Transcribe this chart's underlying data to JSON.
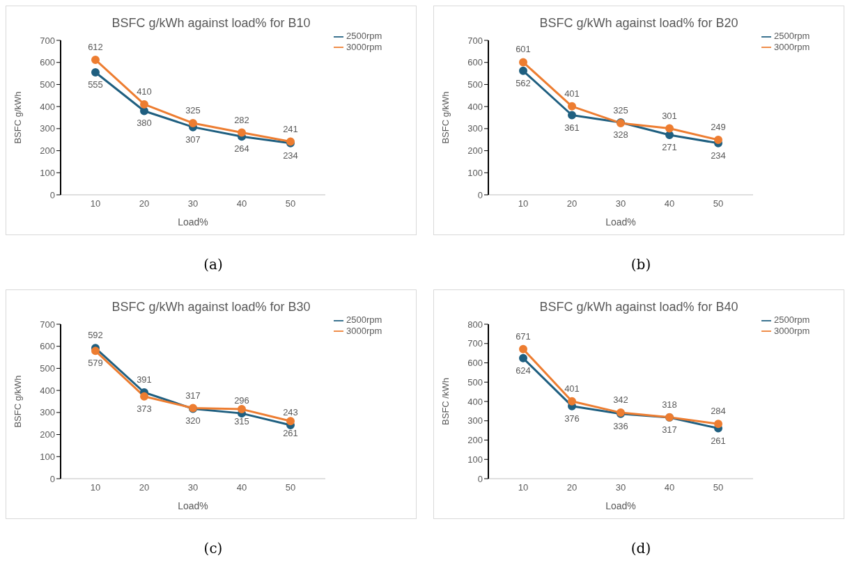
{
  "chart_data": [
    {
      "type": "line",
      "title": "BSFC g/kWh against load% for B10",
      "xlabel": "Load%",
      "ylabel": "BSFC g/kWh",
      "categories": [
        "10",
        "20",
        "30",
        "40",
        "50"
      ],
      "series": [
        {
          "name": "2500rpm",
          "color": "#1f5f80",
          "values": [
            555,
            380,
            307,
            264,
            234
          ]
        },
        {
          "name": "3000rpm",
          "color": "#ed7d31",
          "values": [
            612,
            410,
            325,
            282,
            241
          ]
        }
      ],
      "ylim": [
        0,
        700
      ],
      "yticks": [
        0,
        100,
        200,
        300,
        400,
        500,
        600,
        700
      ],
      "legend": "top right",
      "marker": "circle",
      "line_style": "solid",
      "data_labels": true,
      "annotations": [
        "(a)"
      ]
    },
    {
      "type": "line",
      "title": "BSFC g/kWh against load% for B20",
      "xlabel": "Load%",
      "ylabel": "BSFC g/kWh",
      "categories": [
        "10",
        "20",
        "30",
        "40",
        "50"
      ],
      "series": [
        {
          "name": "2500rpm",
          "color": "#1f5f80",
          "values": [
            562,
            361,
            328,
            271,
            234
          ]
        },
        {
          "name": "3000rpm",
          "color": "#ed7d31",
          "values": [
            601,
            401,
            325,
            301,
            249
          ]
        }
      ],
      "ylim": [
        0,
        700
      ],
      "yticks": [
        0,
        100,
        200,
        300,
        400,
        500,
        600,
        700
      ],
      "legend": "top right",
      "marker": "circle",
      "line_style": "solid",
      "data_labels": true,
      "annotations": [
        "(b)"
      ]
    },
    {
      "type": "line",
      "title": "BSFC g/kWh against load% for B30",
      "xlabel": "Load%",
      "ylabel": "BSFC g/kWh",
      "categories": [
        "10",
        "20",
        "30",
        "40",
        "50"
      ],
      "series": [
        {
          "name": "2500rpm",
          "color": "#1f5f80",
          "values": [
            592,
            391,
            317,
            296,
            243
          ]
        },
        {
          "name": "3000rpm",
          "color": "#ed7d31",
          "values": [
            579,
            373,
            320,
            315,
            261
          ]
        }
      ],
      "ylim": [
        0,
        700
      ],
      "yticks": [
        0,
        100,
        200,
        300,
        400,
        500,
        600,
        700
      ],
      "legend": "top right",
      "marker": "circle",
      "line_style": "solid",
      "data_labels": true,
      "annotations": [
        "(c)"
      ]
    },
    {
      "type": "line",
      "title": "BSFC g/kWh against load% for B40",
      "xlabel": "Load%",
      "ylabel": "BSFC /kWh",
      "categories": [
        "10",
        "20",
        "30",
        "40",
        "50"
      ],
      "series": [
        {
          "name": "2500rpm",
          "color": "#1f5f80",
          "values": [
            624,
            376,
            336,
            317,
            261
          ]
        },
        {
          "name": "3000rpm",
          "color": "#ed7d31",
          "values": [
            671,
            401,
            342,
            318,
            284
          ]
        }
      ],
      "ylim": [
        0,
        800
      ],
      "yticks": [
        0,
        100,
        200,
        300,
        400,
        500,
        600,
        700,
        800
      ],
      "legend": "top right",
      "marker": "circle",
      "line_style": "solid",
      "data_labels": true,
      "annotations": [
        "(d)"
      ]
    }
  ]
}
